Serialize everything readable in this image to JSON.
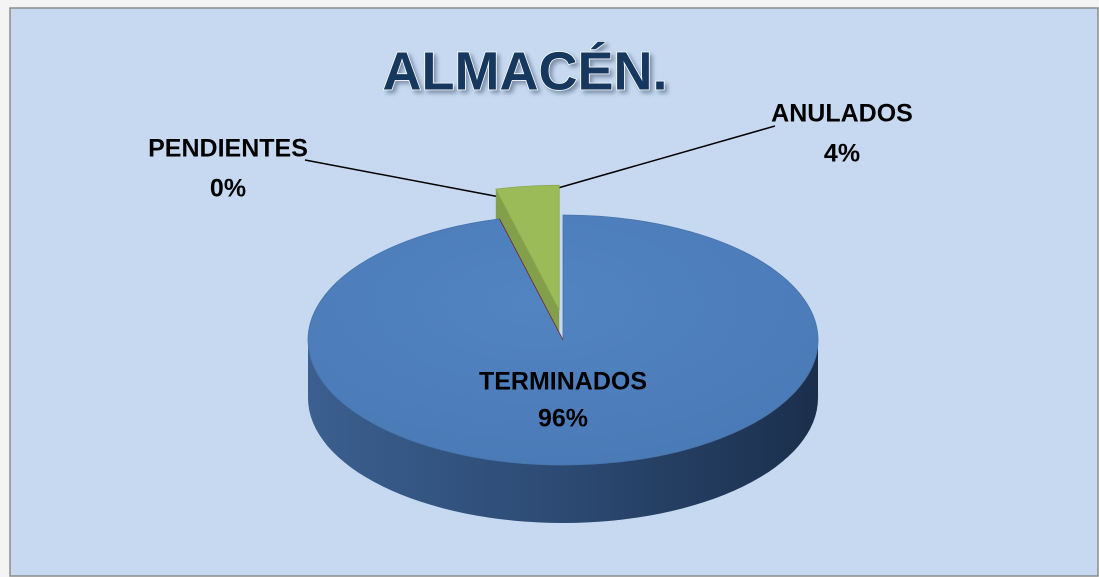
{
  "chart_data": {
    "type": "pie",
    "title": "ALMACÉN.",
    "categories": [
      "TERMINADOS",
      "PENDIENTES",
      "ANULADOS"
    ],
    "values": [
      96,
      0,
      4
    ],
    "value_labels": [
      "96%",
      "0%",
      "4%"
    ],
    "colors": [
      "#4f81bd",
      "#8b2b1f",
      "#9bbb59"
    ]
  }
}
